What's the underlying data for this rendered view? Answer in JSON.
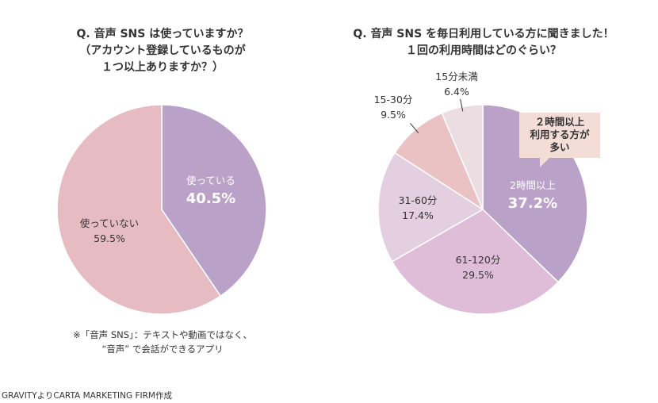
{
  "chart_data": [
    {
      "type": "pie",
      "title": [
        "Q. 音声 SNS は使っていますか？",
        "（アカウント登録しているものが",
        "１つ以上ありますか？）"
      ],
      "slices": [
        {
          "label": "使っている",
          "value": 40.5,
          "display": "40.5%",
          "color": "#b9a1c8"
        },
        {
          "label": "使っていない",
          "value": 59.5,
          "display": "59.5%",
          "color": "#e6bcc2"
        }
      ]
    },
    {
      "type": "pie",
      "title": [
        "Q. 音声 SNS を毎日利用している方に聞きました！",
        "１回の利用時間はどのぐらい？"
      ],
      "slices": [
        {
          "label": "2時間以上",
          "value": 37.2,
          "display": "37.2%",
          "color": "#b9a1c8"
        },
        {
          "label": "61-120分",
          "value": 29.5,
          "display": "29.5%",
          "color": "#dfbdd9"
        },
        {
          "label": "31-60分",
          "value": 17.4,
          "display": "17.4%",
          "color": "#e3cfe0"
        },
        {
          "label": "15-30分",
          "value": 9.5,
          "display": "9.5%",
          "color": "#ebc2c4"
        },
        {
          "label": "15分未満",
          "value": 6.4,
          "display": "6.4%",
          "color": "#ecdde2"
        }
      ],
      "callout": [
        "２時間以上",
        "利用する方が",
        "多い"
      ]
    }
  ],
  "note": [
    "※「音声 SNS」：テキストや動画ではなく、",
    "“音声” で会話ができるアプリ"
  ],
  "source": "GRAVITYよりCARTA MARKETING FIRM作成"
}
